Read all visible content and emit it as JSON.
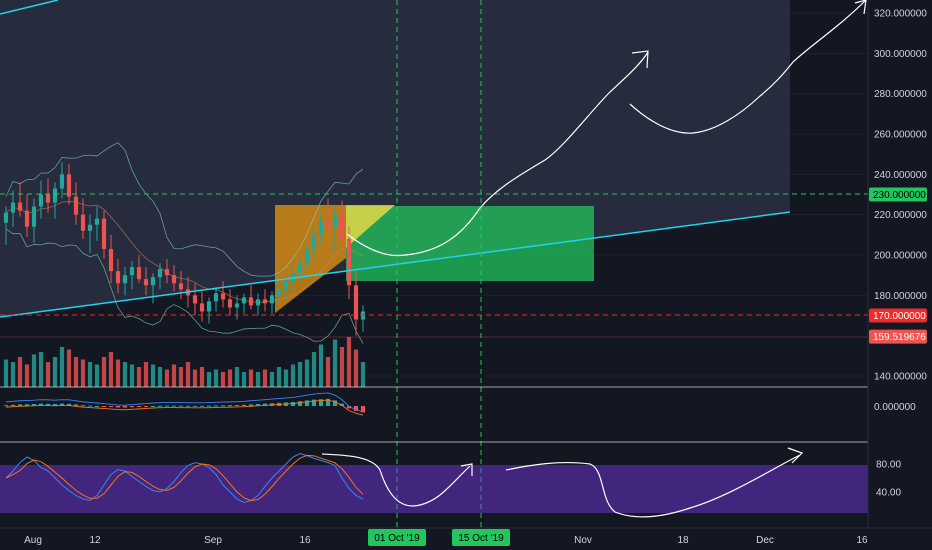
{
  "chart_data": {
    "type": "candlestick",
    "price_axis": {
      "labels": [
        "320.000000",
        "300.000000",
        "280.000000",
        "260.000000",
        "240.000000",
        "220.000000",
        "200.000000",
        "180.000000",
        "140.000000"
      ],
      "values": [
        320,
        300,
        280,
        260,
        240,
        220,
        200,
        180,
        140
      ],
      "range": [
        130,
        325
      ]
    },
    "price_tags": [
      {
        "label": "230.000000",
        "value": 230,
        "color": "#22c55e",
        "text_color": "#000000"
      },
      {
        "label": "170.000000",
        "value": 170,
        "color": "#ef2b2b",
        "text_color": "#ffffff"
      },
      {
        "label": "159.519676",
        "value": 159.52,
        "color": "#ef5350",
        "text_color": "#ffffff"
      }
    ],
    "macd_axis_label": "0.000000",
    "stoch_axis_labels": [
      "80.00",
      "40.00"
    ],
    "stoch_axis_values": [
      80,
      40
    ],
    "time_axis": [
      "Aug",
      "12",
      "Sep",
      "16",
      "Nov",
      "18",
      "Dec",
      "16"
    ],
    "date_tags": [
      {
        "label": "01 Oct '19",
        "color": "#22c55e"
      },
      {
        "label": "15 Oct '19",
        "color": "#22c55e"
      }
    ],
    "candles": [
      [
        216,
        224,
        205,
        221
      ],
      [
        221,
        232,
        214,
        226
      ],
      [
        226,
        236,
        219,
        222
      ],
      [
        222,
        230,
        209,
        214
      ],
      [
        214,
        228,
        206,
        224
      ],
      [
        224,
        237,
        218,
        230
      ],
      [
        230,
        238,
        221,
        226
      ],
      [
        226,
        236,
        218,
        233
      ],
      [
        233,
        246,
        228,
        240
      ],
      [
        240,
        245,
        225,
        229
      ],
      [
        229,
        236,
        215,
        220
      ],
      [
        220,
        228,
        208,
        212
      ],
      [
        212,
        220,
        201,
        215
      ],
      [
        215,
        224,
        207,
        218
      ],
      [
        218,
        222,
        198,
        203
      ],
      [
        203,
        210,
        186,
        192
      ],
      [
        192,
        198,
        181,
        186
      ],
      [
        186,
        194,
        180,
        190
      ],
      [
        190,
        197,
        183,
        194
      ],
      [
        194,
        200,
        186,
        188
      ],
      [
        188,
        194,
        180,
        185
      ],
      [
        185,
        191,
        176,
        189
      ],
      [
        189,
        196,
        183,
        193
      ],
      [
        193,
        198,
        186,
        190
      ],
      [
        190,
        195,
        182,
        186
      ],
      [
        186,
        192,
        178,
        183
      ],
      [
        183,
        189,
        174,
        180
      ],
      [
        180,
        186,
        170,
        176
      ],
      [
        176,
        182,
        167,
        172
      ],
      [
        172,
        179,
        166,
        177
      ],
      [
        177,
        184,
        172,
        181
      ],
      [
        181,
        187,
        174,
        178
      ],
      [
        178,
        183,
        170,
        174
      ],
      [
        174,
        180,
        168,
        176
      ],
      [
        176,
        181,
        171,
        179
      ],
      [
        179,
        185,
        173,
        175
      ],
      [
        175,
        181,
        170,
        178
      ],
      [
        178,
        183,
        172,
        176
      ],
      [
        176,
        182,
        171,
        180
      ],
      [
        180,
        186,
        176,
        183
      ],
      [
        183,
        190,
        178,
        187
      ],
      [
        187,
        194,
        182,
        191
      ],
      [
        191,
        199,
        186,
        196
      ],
      [
        196,
        206,
        191,
        203
      ],
      [
        203,
        214,
        198,
        210
      ],
      [
        210,
        222,
        205,
        217
      ],
      [
        217,
        228,
        210,
        214
      ],
      [
        214,
        224,
        202,
        220
      ],
      [
        220,
        227,
        206,
        208
      ],
      [
        208,
        214,
        178,
        185
      ],
      [
        185,
        192,
        160,
        168
      ],
      [
        168,
        175,
        162,
        172
      ]
    ],
    "volumes": [
      0.55,
      0.5,
      0.6,
      0.45,
      0.65,
      0.7,
      0.5,
      0.6,
      0.8,
      0.75,
      0.6,
      0.55,
      0.5,
      0.45,
      0.6,
      0.7,
      0.55,
      0.5,
      0.45,
      0.4,
      0.5,
      0.45,
      0.4,
      0.35,
      0.45,
      0.4,
      0.5,
      0.35,
      0.4,
      0.3,
      0.35,
      0.3,
      0.35,
      0.4,
      0.3,
      0.35,
      0.3,
      0.35,
      0.3,
      0.4,
      0.35,
      0.45,
      0.5,
      0.55,
      0.7,
      0.85,
      0.6,
      0.95,
      0.8,
      1.0,
      0.75,
      0.5
    ],
    "macd_hist": [
      0.1,
      0.15,
      0.2,
      0.22,
      0.25,
      0.3,
      0.28,
      0.25,
      0.3,
      0.28,
      0.2,
      0.1,
      0.05,
      0,
      -0.05,
      -0.12,
      -0.18,
      -0.2,
      -0.15,
      -0.1,
      -0.05,
      0,
      0.03,
      0.05,
      0.05,
      0.04,
      0.03,
      0.02,
      0.02,
      0.04,
      0.06,
      0.08,
      0.1,
      0.12,
      0.15,
      0.2,
      0.25,
      0.3,
      0.35,
      0.4,
      0.45,
      0.5,
      0.6,
      0.7,
      0.8,
      0.85,
      0.9,
      0.7,
      0.3,
      -0.3,
      -0.6,
      -0.8
    ],
    "stoch_k": [
      60,
      70,
      82,
      90,
      85,
      75,
      70,
      60,
      50,
      42,
      35,
      30,
      28,
      35,
      50,
      65,
      72,
      70,
      62,
      55,
      48,
      42,
      40,
      45,
      55,
      68,
      78,
      82,
      80,
      75,
      65,
      50,
      40,
      30,
      25,
      28,
      35,
      48,
      60,
      70,
      80,
      90,
      95,
      92,
      88,
      85,
      82,
      78,
      60,
      45,
      35,
      30
    ]
  }
}
